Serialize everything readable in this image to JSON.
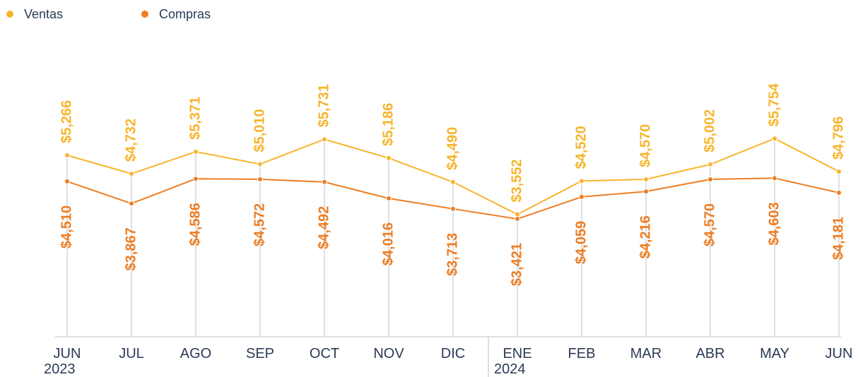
{
  "chart_data": {
    "type": "line",
    "categories": [
      "JUN",
      "JUL",
      "AGO",
      "SEP",
      "OCT",
      "NOV",
      "DIC",
      "ENE",
      "FEB",
      "MAR",
      "ABR",
      "MAY",
      "JUN"
    ],
    "years": [
      "2023",
      null,
      null,
      null,
      null,
      null,
      null,
      "2024",
      null,
      null,
      null,
      null,
      null
    ],
    "ylim": [
      0,
      10000
    ],
    "legend": "top-left",
    "series": [
      {
        "name": "Ventas",
        "color": "#f7b52c",
        "values": [
          5266,
          4732,
          5371,
          5010,
          5731,
          5186,
          4490,
          3552,
          4520,
          4570,
          5002,
          5754,
          4796
        ],
        "value_labels": [
          "$5,266",
          "$4,732",
          "$5,371",
          "$5,010",
          "$5,731",
          "$5,186",
          "$4,490",
          "$3,552",
          "$4,520",
          "$4,570",
          "$5,002",
          "$5,754",
          "$4,796"
        ]
      },
      {
        "name": "Compras",
        "color": "#ee7d22",
        "values": [
          4510,
          3867,
          4586,
          4572,
          4492,
          4016,
          3713,
          3421,
          4059,
          4216,
          4570,
          4603,
          4181
        ],
        "value_labels": [
          "$4,510",
          "$3,867",
          "$4,586",
          "$4,572",
          "$4,492",
          "$4,016",
          "$3,713",
          "$3,421",
          "$4,059",
          "$4,216",
          "$4,570",
          "$4,603",
          "$4,181"
        ]
      }
    ]
  }
}
